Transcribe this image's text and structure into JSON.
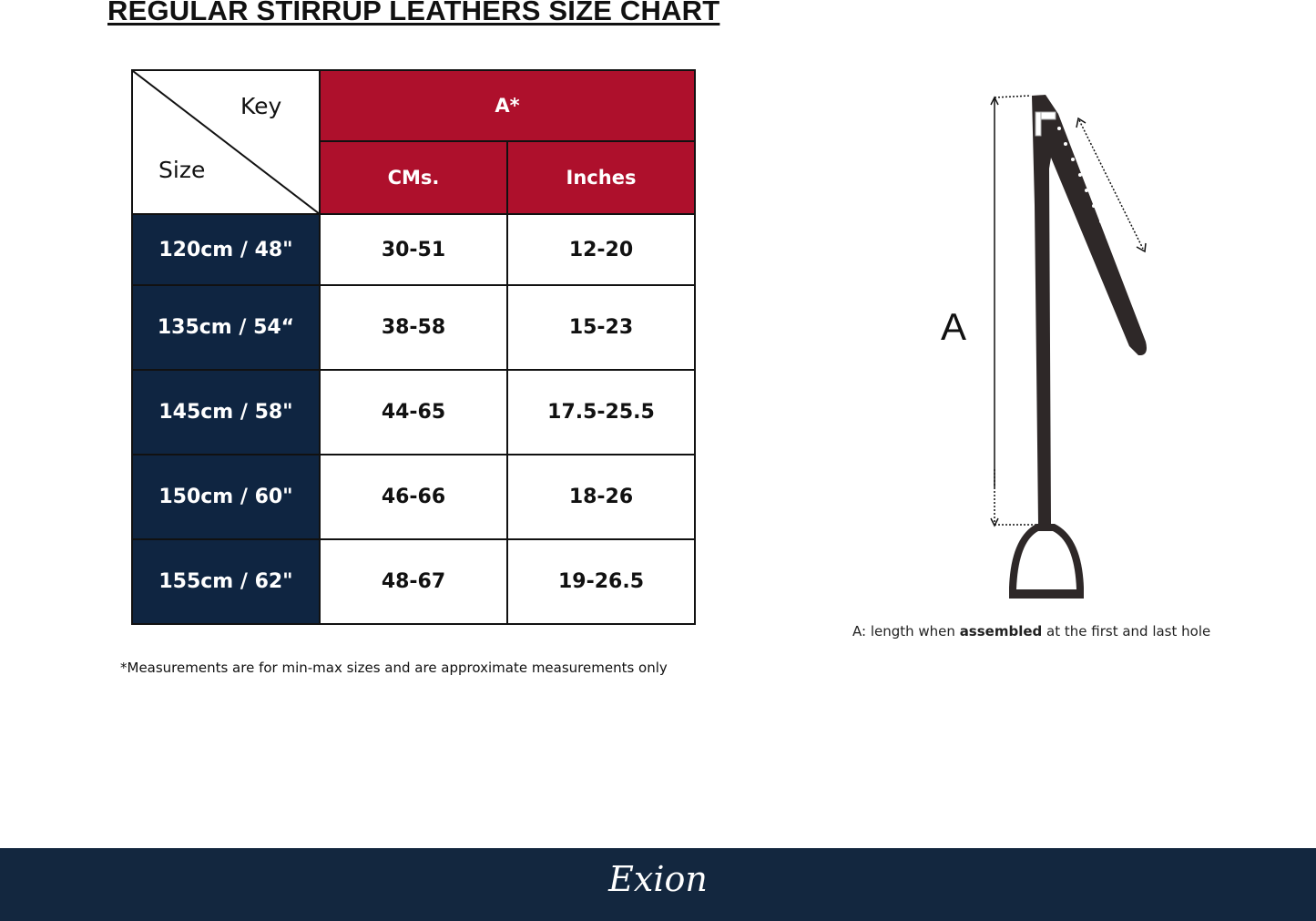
{
  "title": "REGULAR STIRRUP LEATHERS  SIZE CHART",
  "table": {
    "corner": {
      "key": "Key",
      "size": "Size"
    },
    "group_header": "A*",
    "columns": [
      "CMs.",
      "Inches"
    ],
    "rows": [
      {
        "size": "120cm / 48\"",
        "cms": "30-51",
        "inches": "12-20"
      },
      {
        "size": "135cm / 54“",
        "cms": "38-58",
        "inches": "15-23"
      },
      {
        "size": "145cm / 58\"",
        "cms": "44-65",
        "inches": "17.5-25.5"
      },
      {
        "size": "150cm / 60\"",
        "cms": "46-66",
        "inches": "18-26"
      },
      {
        "size": "155cm / 62\"",
        "cms": "48-67",
        "inches": "19-26.5"
      }
    ]
  },
  "note": "*Measurements are for min-max sizes and are approximate measurements only",
  "diagram": {
    "label": "A",
    "caption_pre": "A: length when ",
    "caption_bold": "assembled",
    "caption_post": " at the first and last hole"
  },
  "footer": {
    "logo": "Exion"
  },
  "colors": {
    "header_red": "#ae102c",
    "size_navy": "#0f2541",
    "footer": "#13273f",
    "leather": "#2e2828"
  }
}
